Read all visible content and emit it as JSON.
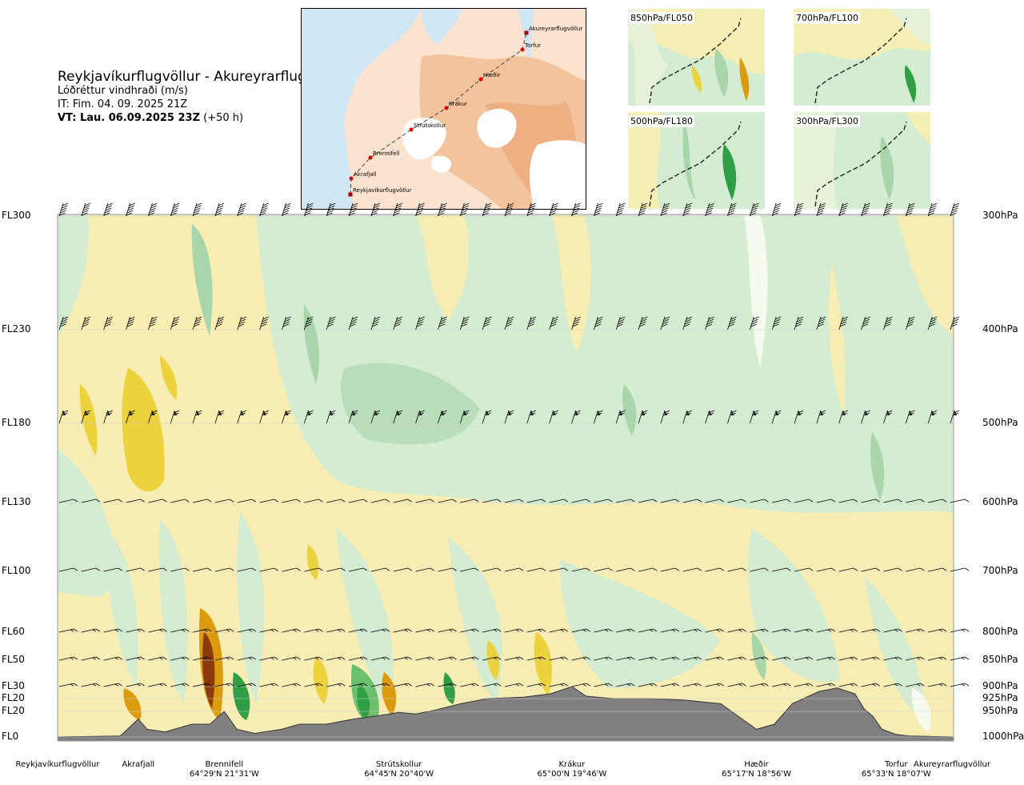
{
  "header": {
    "route": "Reykjavíkurflugvöllur - Akureyrarflugvöllur",
    "variable": "Lóðréttur vindhraði (m/s)",
    "issue_time": "IT: Fim. 04. 09. 2025 21Z",
    "valid_time": "VT: Lau. 06.09.2025 23Z",
    "lead": "(+50 h)"
  },
  "map": {
    "points": [
      "Akureyrarflugvöllur",
      "Torfur",
      "Hæðir",
      "Krákur",
      "Strútskollur",
      "Brennifell",
      "Akrafjall",
      "Reykjavíkurflugvöllur"
    ],
    "colors": {
      "sea": "#cfe6f5",
      "land_low": "#fbe3cf",
      "land_high": "#f2b98b",
      "glacier": "#ffffff",
      "route": "#444444",
      "waypoint": "#dd0000"
    }
  },
  "panels": [
    {
      "label": "850hPa/FL050"
    },
    {
      "label": "700hPa/FL100"
    },
    {
      "label": "500hPa/FL180"
    },
    {
      "label": "300hPa/FL300"
    }
  ],
  "chart_data": {
    "type": "heatmap",
    "title": "Lóðréttur vindhraði (m/s)",
    "left_axis_labels": [
      "FL300",
      "FL230",
      "FL180",
      "FL130",
      "FL100",
      "FL60",
      "FL50",
      "FL30",
      "FL20",
      "FL20",
      "FL0"
    ],
    "right_axis_labels": [
      "300hPa",
      "400hPa",
      "500hPa",
      "600hPa",
      "700hPa",
      "800hPa",
      "850hPa",
      "900hPa",
      "925hPa",
      "950hPa",
      "1000hPa"
    ],
    "pressure_levels_hpa": [
      300,
      400,
      500,
      600,
      700,
      800,
      850,
      900,
      925,
      950,
      1000
    ],
    "waypoints": [
      {
        "name": "Reykjavíkurflugvöllur",
        "coord": "",
        "pos": 0.0
      },
      {
        "name": "Akrafjall",
        "coord": "",
        "pos": 0.09
      },
      {
        "name": "Brennifell",
        "coord": "64°29'N 21°31'W",
        "pos": 0.186
      },
      {
        "name": "Strútskollur",
        "coord": "64°45'N 20°40'W",
        "pos": 0.381
      },
      {
        "name": "Krákur",
        "coord": "65°00'N 19°46'W",
        "pos": 0.574
      },
      {
        "name": "Hæðir",
        "coord": "65°17'N 18°56'W",
        "pos": 0.78
      },
      {
        "name": "Torfur",
        "coord": "65°33'N 18°07'W",
        "pos": 0.936
      },
      {
        "name": "Akureyrarflugvöllur",
        "coord": "",
        "pos": 1.0
      }
    ],
    "colors": {
      "updraft_weak": "#d3ecd2",
      "updraft_moderate": "#a8d5a9",
      "updraft_strong": "#2f9e44",
      "neutral": "#f7fbef",
      "downdraft_weak": "#f8edb3",
      "downdraft_moderate": "#ecd23c",
      "downdraft_strong": "#dc9a0e",
      "downdraft_extreme": "#8b3a0a",
      "terrain": "#808080"
    },
    "terrain_profile": {
      "pos": [
        0.0,
        0.07,
        0.09,
        0.1,
        0.12,
        0.15,
        0.17,
        0.186,
        0.2,
        0.22,
        0.25,
        0.27,
        0.3,
        0.33,
        0.36,
        0.381,
        0.4,
        0.42,
        0.45,
        0.48,
        0.52,
        0.55,
        0.574,
        0.59,
        0.62,
        0.66,
        0.7,
        0.74,
        0.76,
        0.78,
        0.8,
        0.82,
        0.85,
        0.87,
        0.89,
        0.9,
        0.91,
        0.92,
        0.936,
        0.95,
        1.0
      ],
      "pressure_hpa": [
        1000,
        998,
        965,
        985,
        990,
        975,
        975,
        950,
        985,
        993,
        985,
        975,
        975,
        965,
        958,
        952,
        955,
        948,
        935,
        925,
        922,
        915,
        900,
        920,
        925,
        925,
        928,
        935,
        960,
        985,
        975,
        935,
        910,
        903,
        915,
        945,
        960,
        985,
        995,
        998,
        1000
      ]
    },
    "wind_barb_levels_hpa": [
      300,
      400,
      500,
      600,
      700,
      800,
      850,
      900
    ],
    "wind_speed_kt": {
      "300": 45,
      "400": 40,
      "500": 20,
      "600": 10,
      "700": 10,
      "800": 10,
      "850": 10,
      "900": 10
    }
  }
}
